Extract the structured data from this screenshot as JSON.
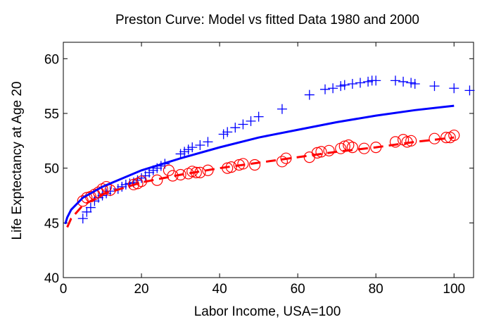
{
  "chart_data": {
    "type": "scatter",
    "title": "Preston Curve: Model vs fitted Data 1980 and 2000",
    "xlabel": "Labor Income, USA=100",
    "ylabel": "Life Exptectancy at Age 20",
    "xlim": [
      0,
      105
    ],
    "ylim": [
      40,
      61.5
    ],
    "xticks": [
      0,
      20,
      40,
      60,
      80,
      100
    ],
    "yticks": [
      40,
      45,
      50,
      55,
      60
    ],
    "grid": false,
    "series": [
      {
        "mode": "plus",
        "color": "#0000ff",
        "x": [
          5,
          6,
          7,
          8,
          9,
          10,
          11,
          12,
          14,
          15,
          16,
          17,
          18,
          19,
          20,
          21,
          22,
          23,
          24,
          25,
          26,
          30,
          31,
          32,
          33,
          35,
          37,
          41,
          42,
          44,
          46,
          48,
          50,
          56,
          63,
          67,
          69,
          71,
          72,
          74,
          76,
          78,
          79,
          80,
          85,
          87,
          89,
          90,
          95,
          100,
          104
        ],
        "values": [
          45.4,
          46,
          46.4,
          47,
          47.3,
          47.5,
          47.7,
          47.9,
          48.1,
          48.3,
          48.5,
          48.6,
          48.7,
          48.9,
          49.1,
          49.3,
          49.6,
          49.8,
          50,
          50.2,
          50.4,
          51.3,
          51.5,
          51.7,
          51.9,
          52.1,
          52.4,
          53.1,
          53.3,
          53.7,
          54,
          54.3,
          54.7,
          55.4,
          56.7,
          57.2,
          57.3,
          57.5,
          57.6,
          57.7,
          57.8,
          57.9,
          58,
          58,
          58,
          57.9,
          57.8,
          57.7,
          57.5,
          57.3,
          57.1
        ]
      },
      {
        "mode": "circle",
        "color": "#ff0000",
        "x": [
          5,
          6,
          7,
          8,
          9,
          10,
          11,
          12,
          18,
          19,
          20,
          24,
          27,
          28,
          30,
          32,
          33,
          34,
          35,
          37,
          42,
          43,
          45,
          46,
          49,
          56,
          57,
          63,
          65,
          66,
          68,
          71,
          72,
          73,
          74,
          77,
          80,
          85,
          87,
          88,
          89,
          95,
          98,
          99,
          100
        ],
        "values": [
          47,
          47.3,
          47.4,
          47.6,
          47.8,
          48.1,
          48.3,
          48,
          48.5,
          48.6,
          48.8,
          48.9,
          49.8,
          49.3,
          49.4,
          49.5,
          49.7,
          49.6,
          49.6,
          49.8,
          50,
          50.1,
          50.3,
          50.4,
          50.3,
          50.6,
          50.9,
          51,
          51.4,
          51.5,
          51.6,
          51.8,
          52,
          52.1,
          51.9,
          51.8,
          51.9,
          52.4,
          52.6,
          52.4,
          52.5,
          52.7,
          52.8,
          52.8,
          53
        ]
      },
      {
        "mode": "solid",
        "color": "#0000ff",
        "x": [
          0.5,
          1,
          2,
          5,
          10,
          20,
          30,
          40,
          50,
          60,
          70,
          80,
          90,
          100
        ],
        "values": [
          44.9,
          45.5,
          46.2,
          47.3,
          48.3,
          49.8,
          50.9,
          51.9,
          52.8,
          53.5,
          54.2,
          54.8,
          55.3,
          55.7
        ]
      },
      {
        "mode": "dashed",
        "color": "#ff0000",
        "x": [
          1,
          2,
          5,
          10,
          20,
          30,
          40,
          50,
          60,
          70,
          80,
          90,
          100
        ],
        "values": [
          44.6,
          45.4,
          46.6,
          47.6,
          48.7,
          49.4,
          50,
          50.5,
          51,
          51.5,
          51.9,
          52.4,
          52.8
        ]
      }
    ]
  }
}
